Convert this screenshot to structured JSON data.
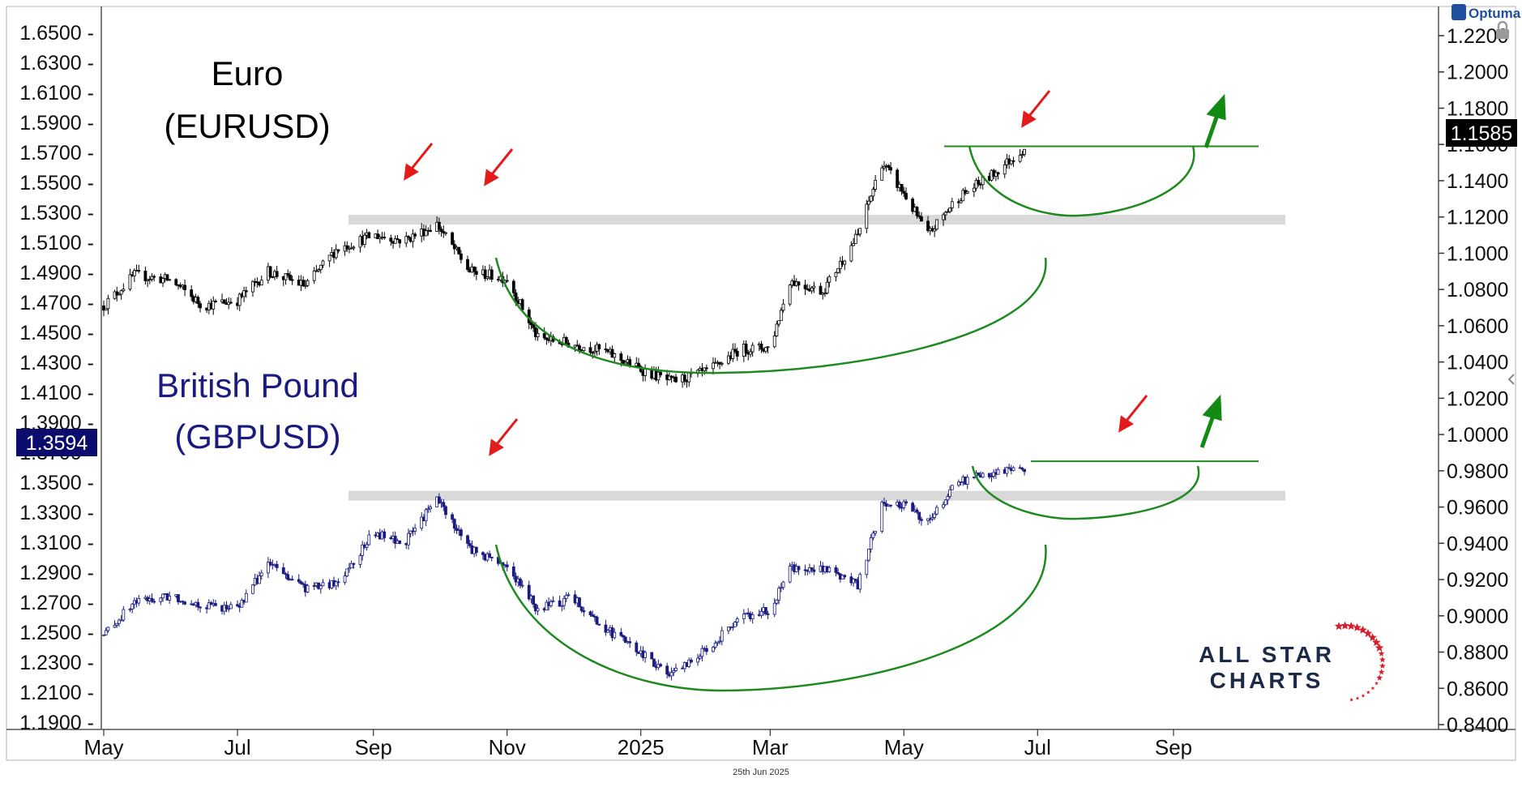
{
  "footer_date": "25th Jun 2025",
  "brand": {
    "optuma": "Optuma",
    "logo_line1": "ALL STAR",
    "logo_line2": "CHARTS"
  },
  "chart_data": [
    {
      "type": "candlestick",
      "title": "Euro",
      "subtitle": "(EURUSD)",
      "title_color": "#000000",
      "candle_color": "#000000",
      "y_axis_side": "right",
      "y_ticks": [
        "1.2200",
        "1.2000",
        "1.1800",
        "1.1600",
        "1.1400",
        "1.1200",
        "1.1000",
        "1.0800",
        "1.0600",
        "1.0400",
        "1.0200",
        "1.0000",
        "0.9800",
        "0.9600",
        "0.9400",
        "0.9200",
        "0.9000",
        "0.8800",
        "0.8600",
        "0.8400"
      ],
      "last_price": "1.1585",
      "resistance_zone": 1.1185,
      "breakout_level": 1.159,
      "approx_path": [
        [
          "2024-05-01",
          1.071
        ],
        [
          "2024-05-15",
          1.088
        ],
        [
          "2024-06-01",
          1.085
        ],
        [
          "2024-06-15",
          1.071
        ],
        [
          "2024-07-01",
          1.074
        ],
        [
          "2024-07-15",
          1.09
        ],
        [
          "2024-08-01",
          1.082
        ],
        [
          "2024-08-15",
          1.102
        ],
        [
          "2024-09-01",
          1.11
        ],
        [
          "2024-09-15",
          1.107
        ],
        [
          "2024-09-30",
          1.116
        ],
        [
          "2024-10-15",
          1.09
        ],
        [
          "2024-11-01",
          1.086
        ],
        [
          "2024-11-15",
          1.053
        ],
        [
          "2024-12-01",
          1.05
        ],
        [
          "2024-12-15",
          1.046
        ],
        [
          "2025-01-01",
          1.036
        ],
        [
          "2025-01-15",
          1.029
        ],
        [
          "2025-02-01",
          1.035
        ],
        [
          "2025-02-15",
          1.047
        ],
        [
          "2025-03-01",
          1.048
        ],
        [
          "2025-03-10",
          1.085
        ],
        [
          "2025-03-25",
          1.079
        ],
        [
          "2025-04-10",
          1.11
        ],
        [
          "2025-04-21",
          1.15
        ],
        [
          "2025-05-01",
          1.133
        ],
        [
          "2025-05-12",
          1.11
        ],
        [
          "2025-05-25",
          1.13
        ],
        [
          "2025-06-10",
          1.143
        ],
        [
          "2025-06-25",
          1.158
        ]
      ]
    },
    {
      "type": "candlestick",
      "title": "British Pound",
      "subtitle": "(GBPUSD)",
      "title_color": "#1a1a80",
      "candle_color": "#1a1a80",
      "y_axis_side": "left",
      "y_ticks": [
        "1.6500",
        "1.6300",
        "1.6100",
        "1.5900",
        "1.5700",
        "1.5500",
        "1.5300",
        "1.5100",
        "1.4900",
        "1.4700",
        "1.4500",
        "1.4300",
        "1.4100",
        "1.3900",
        "1.3700",
        "1.3500",
        "1.3300",
        "1.3100",
        "1.2900",
        "1.2700",
        "1.2500",
        "1.2300",
        "1.2100",
        "1.1900"
      ],
      "last_price": "1.3594",
      "resistance_zone": 1.341,
      "breakout_level": 1.364,
      "approx_path": [
        [
          "2024-05-01",
          1.248
        ],
        [
          "2024-05-15",
          1.27
        ],
        [
          "2024-06-01",
          1.274
        ],
        [
          "2024-06-15",
          1.268
        ],
        [
          "2024-07-01",
          1.266
        ],
        [
          "2024-07-15",
          1.296
        ],
        [
          "2024-08-01",
          1.279
        ],
        [
          "2024-08-15",
          1.282
        ],
        [
          "2024-09-01",
          1.316
        ],
        [
          "2024-09-15",
          1.309
        ],
        [
          "2024-09-30",
          1.339
        ],
        [
          "2024-10-15",
          1.306
        ],
        [
          "2024-11-01",
          1.294
        ],
        [
          "2024-11-15",
          1.265
        ],
        [
          "2024-12-01",
          1.273
        ],
        [
          "2024-12-15",
          1.253
        ],
        [
          "2025-01-01",
          1.236
        ],
        [
          "2025-01-15",
          1.221
        ],
        [
          "2025-02-01",
          1.24
        ],
        [
          "2025-02-15",
          1.259
        ],
        [
          "2025-03-01",
          1.265
        ],
        [
          "2025-03-10",
          1.292
        ],
        [
          "2025-03-25",
          1.293
        ],
        [
          "2025-04-10",
          1.281
        ],
        [
          "2025-04-21",
          1.335
        ],
        [
          "2025-05-01",
          1.336
        ],
        [
          "2025-05-12",
          1.323
        ],
        [
          "2025-05-25",
          1.35
        ],
        [
          "2025-06-10",
          1.356
        ],
        [
          "2025-06-25",
          1.359
        ]
      ]
    }
  ],
  "x_axis": {
    "labels": [
      "May",
      "Jul",
      "Sep",
      "Nov",
      "2025",
      "Mar",
      "May",
      "Jul",
      "Sep"
    ]
  },
  "colors": {
    "rounding_pattern": "#1f8a1f",
    "arrow_red": "#e31b1b",
    "arrow_green": "#138a13",
    "zone": "#d9d9d9",
    "eur_label_bg": "#000000",
    "gbp_label_bg": "#0c0c6e"
  }
}
